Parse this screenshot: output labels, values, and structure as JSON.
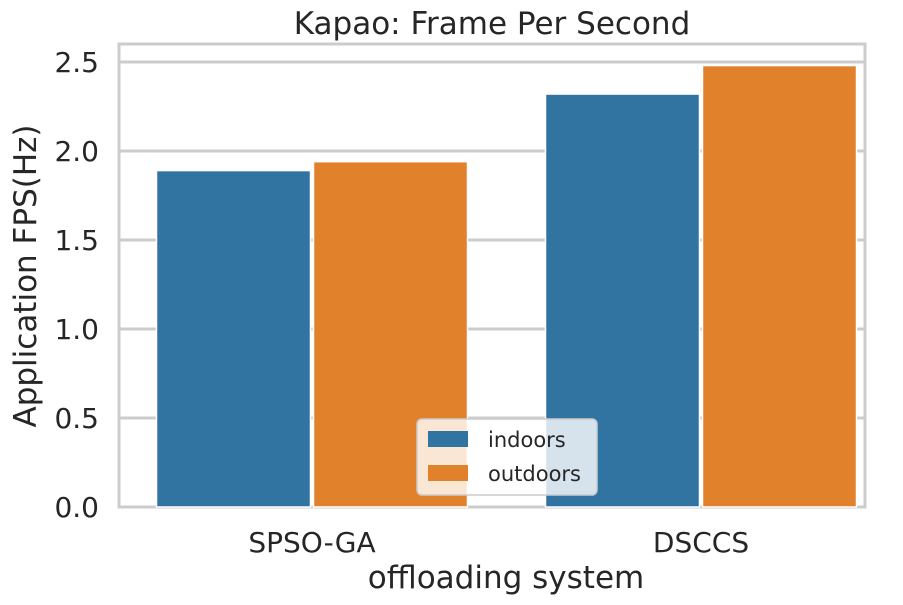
{
  "chart_data": {
    "type": "bar",
    "title": "Kapao: Frame Per Second",
    "xlabel": "offloading system",
    "ylabel": "Application FPS(Hz)",
    "categories": [
      "SPSO-GA",
      "DSCCS"
    ],
    "series": [
      {
        "name": "indoors",
        "values": [
          1.89,
          2.32
        ],
        "color": "#3274a1"
      },
      {
        "name": "outdoors",
        "values": [
          1.94,
          2.48
        ],
        "color": "#e1812c"
      }
    ],
    "ylim": [
      0,
      2.62
    ],
    "yticks": [
      "0.0",
      "0.5",
      "1.0",
      "1.5",
      "2.0",
      "2.5"
    ],
    "grid": true,
    "legend_position": "bottom-center"
  }
}
